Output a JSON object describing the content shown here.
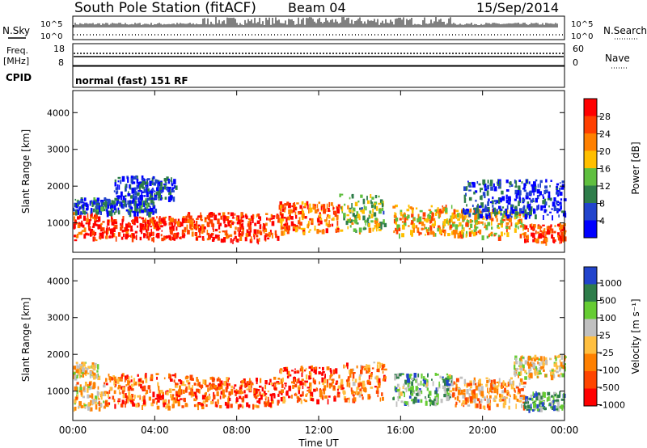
{
  "header": {
    "title": "South Pole Station (fitACF)",
    "beam": "Beam 04",
    "date": "15/Sep/2014"
  },
  "panels": {
    "nsky": {
      "left_label": "N.Sky",
      "right_label": "N.Search",
      "y_ticks_left": [
        "10^5",
        "10^0"
      ],
      "y_ticks_right": [
        "10^5",
        "10^0"
      ]
    },
    "freq": {
      "left_label_1": "Freq.",
      "left_label_2": "[MHz]",
      "right_label": "Nave",
      "y_ticks_left": [
        "18",
        "8"
      ],
      "y_ticks_right": [
        "60",
        "0"
      ]
    },
    "cpid": {
      "left_label": "CPID",
      "text": "normal (fast) 151 RF"
    }
  },
  "colors": {
    "power": [
      "#0000ff",
      "#2244cc",
      "#2e7d4a",
      "#5fbf3f",
      "#ffbf00",
      "#ff8000",
      "#ff3f00",
      "#ff0000"
    ],
    "velocity": [
      "#ff0000",
      "#ff4500",
      "#ff8000",
      "#ffbf40",
      "#c0c0c0",
      "#66cc33",
      "#2e7d4a",
      "#2244cc"
    ]
  },
  "chart_data": [
    {
      "type": "heatmap",
      "name": "power-panel",
      "ylabel": "Slant Range [km]",
      "ylim": [
        200,
        4600
      ],
      "y_ticks": [
        1000,
        2000,
        3000,
        4000
      ],
      "x_ticks": [
        "00:00",
        "04:00",
        "08:00",
        "12:00",
        "16:00",
        "20:00",
        "00:00"
      ],
      "colorbar": {
        "label": "Power [dB]",
        "ticks": [
          "28",
          "24",
          "20",
          "16",
          "12",
          "8",
          "4"
        ],
        "range": [
          0,
          32
        ]
      },
      "bands": [
        {
          "x0": 0.0,
          "x1": 1.2,
          "y0": 550,
          "y1": 1300,
          "level": 0.85
        },
        {
          "x0": 1.2,
          "x1": 5.5,
          "y0": 600,
          "y1": 1200,
          "level": 0.9
        },
        {
          "x0": 0.0,
          "x1": 4.0,
          "y0": 1300,
          "y1": 1700,
          "level": 0.2
        },
        {
          "x0": 2.0,
          "x1": 5.0,
          "y0": 1700,
          "y1": 2300,
          "level": 0.15
        },
        {
          "x0": 5.5,
          "x1": 10.0,
          "y0": 550,
          "y1": 1300,
          "level": 0.85
        },
        {
          "x0": 10.0,
          "x1": 13.0,
          "y0": 750,
          "y1": 1600,
          "level": 0.75
        },
        {
          "x0": 13.0,
          "x1": 15.2,
          "y0": 800,
          "y1": 1800,
          "level": 0.45
        },
        {
          "x0": 15.6,
          "x1": 18.5,
          "y0": 700,
          "y1": 1500,
          "level": 0.65
        },
        {
          "x0": 18.5,
          "x1": 22.0,
          "y0": 650,
          "y1": 1400,
          "level": 0.6
        },
        {
          "x0": 22.0,
          "x1": 24.0,
          "y0": 500,
          "y1": 1000,
          "level": 0.85
        },
        {
          "x0": 19.0,
          "x1": 24.0,
          "y0": 1200,
          "y1": 2200,
          "level": 0.15
        }
      ],
      "x_range_hours": [
        0,
        24
      ]
    },
    {
      "type": "heatmap",
      "name": "velocity-panel",
      "xlabel": "Time UT",
      "ylabel": "Slant Range [km]",
      "ylim": [
        200,
        4600
      ],
      "y_ticks": [
        1000,
        2000,
        3000,
        4000
      ],
      "x_ticks": [
        "00:00",
        "04:00",
        "08:00",
        "12:00",
        "16:00",
        "20:00",
        "00:00"
      ],
      "colorbar": {
        "label": "Velocity [m s⁻¹]",
        "ticks": [
          "1000",
          "500",
          "100",
          "25",
          "-25",
          "-100",
          "-500",
          "-1000"
        ],
        "range": [
          -1000,
          1000
        ]
      },
      "bands": [
        {
          "x0": 0.0,
          "x1": 1.5,
          "y0": 550,
          "y1": 1300,
          "level": 0.45
        },
        {
          "x0": 0.0,
          "x1": 1.2,
          "y0": 1400,
          "y1": 1800,
          "level": 0.5
        },
        {
          "x0": 1.5,
          "x1": 6.0,
          "y0": 600,
          "y1": 1500,
          "level": 0.25
        },
        {
          "x0": 6.0,
          "x1": 10.0,
          "y0": 600,
          "y1": 1400,
          "level": 0.2
        },
        {
          "x0": 10.0,
          "x1": 13.0,
          "y0": 750,
          "y1": 1700,
          "level": 0.2
        },
        {
          "x0": 13.0,
          "x1": 15.2,
          "y0": 800,
          "y1": 1800,
          "level": 0.3
        },
        {
          "x0": 15.6,
          "x1": 18.5,
          "y0": 700,
          "y1": 1500,
          "level": 0.7
        },
        {
          "x0": 18.5,
          "x1": 22.0,
          "y0": 600,
          "y1": 1400,
          "level": 0.35
        },
        {
          "x0": 21.5,
          "x1": 24.0,
          "y0": 1400,
          "y1": 2000,
          "level": 0.5
        },
        {
          "x0": 22.0,
          "x1": 24.0,
          "y0": 500,
          "y1": 1000,
          "level": 0.75
        }
      ],
      "x_range_hours": [
        0,
        24
      ]
    }
  ]
}
